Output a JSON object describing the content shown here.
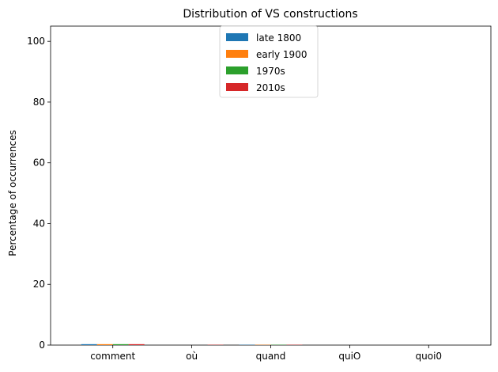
{
  "chart_data": {
    "type": "bar",
    "title": "Distribution of VS constructions",
    "xlabel": "",
    "ylabel": "Percentage of occurrences",
    "categories": [
      "comment",
      "où",
      "quand",
      "quiO",
      "quoi0"
    ],
    "series": [
      {
        "name": "late 1800",
        "color": "#1f77b4",
        "values": [
          0.3,
          0.0,
          0.1,
          0.0,
          0.0
        ]
      },
      {
        "name": "early 1900",
        "color": "#ff7f0e",
        "values": [
          0.3,
          0.0,
          0.1,
          0.0,
          0.0
        ]
      },
      {
        "name": "1970s",
        "color": "#2ca02c",
        "values": [
          0.3,
          0.0,
          0.1,
          0.0,
          0.0
        ]
      },
      {
        "name": "2010s",
        "color": "#d62728",
        "values": [
          0.3,
          0.1,
          0.1,
          0.0,
          0.0
        ]
      }
    ],
    "ylim": [
      0,
      105
    ],
    "yticks": [
      0,
      20,
      40,
      60,
      80,
      100
    ],
    "grid": false,
    "legend_position": "top-center"
  }
}
